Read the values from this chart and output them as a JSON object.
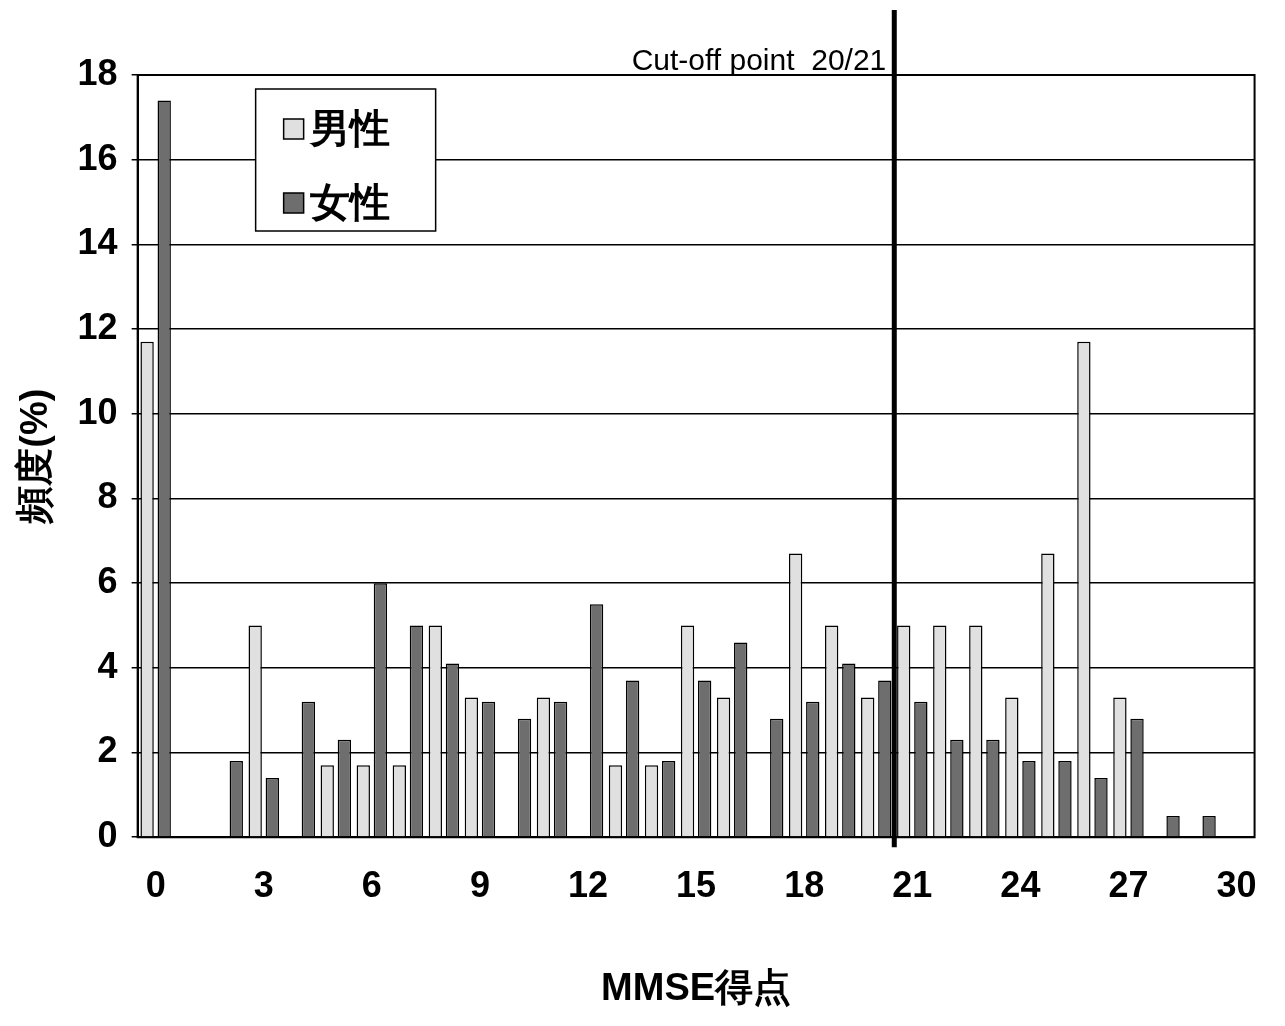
{
  "chart_data": {
    "type": "bar",
    "xlabel": "MMSE得点",
    "ylabel": "頻度(%)",
    "x": [
      0,
      1,
      2,
      3,
      4,
      5,
      6,
      7,
      8,
      9,
      10,
      11,
      12,
      13,
      14,
      15,
      16,
      17,
      18,
      19,
      20,
      21,
      22,
      23,
      24,
      25,
      26,
      27,
      28,
      29,
      30
    ],
    "xlim": [
      -0.5,
      30.5
    ],
    "xticks": [
      0,
      3,
      6,
      9,
      12,
      15,
      18,
      21,
      24,
      27,
      30
    ],
    "ylim": [
      0,
      18
    ],
    "yticks": [
      0,
      2,
      4,
      6,
      8,
      10,
      12,
      14,
      16,
      18
    ],
    "series": [
      {
        "name": "男性",
        "color": "#e0e0e0",
        "values": [
          11.7,
          0,
          0,
          5.0,
          0,
          1.7,
          1.7,
          1.7,
          5.0,
          3.3,
          0,
          3.3,
          0,
          1.7,
          1.7,
          5.0,
          3.3,
          0,
          6.7,
          5.0,
          3.3,
          5.0,
          5.0,
          5.0,
          3.3,
          6.7,
          11.7,
          3.3,
          0,
          0,
          0
        ]
      },
      {
        "name": "女性",
        "color": "#6e6e6e",
        "values": [
          17.4,
          0,
          1.8,
          1.4,
          3.2,
          2.3,
          6.0,
          5.0,
          4.1,
          3.2,
          2.8,
          3.2,
          5.5,
          3.7,
          1.8,
          3.7,
          4.6,
          2.8,
          3.2,
          4.1,
          3.7,
          3.2,
          2.3,
          2.3,
          1.8,
          1.8,
          1.4,
          2.8,
          0.5,
          0.5,
          0
        ]
      }
    ],
    "ref_lines": [
      {
        "axis": "x",
        "value": 20.5,
        "label": "Cut-off point  20/21",
        "color": "#000000"
      }
    ],
    "grid": "y",
    "legend": "top left"
  }
}
